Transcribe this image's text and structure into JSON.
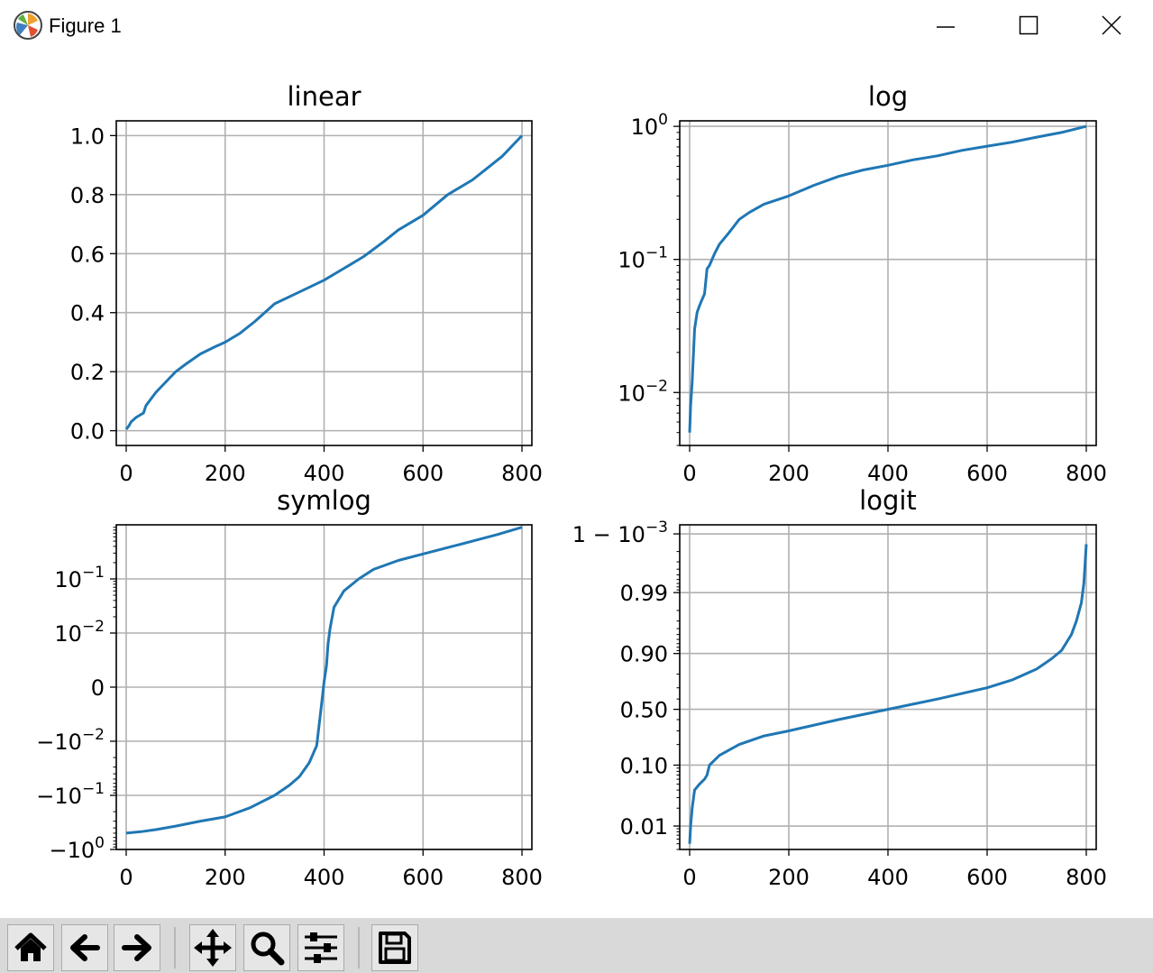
{
  "window": {
    "title": "Figure 1",
    "controls": [
      "minimize",
      "maximize",
      "close"
    ]
  },
  "toolbar": {
    "buttons": [
      "home-icon",
      "back-arrow-icon",
      "forward-arrow-icon",
      "pan-icon",
      "zoom-icon",
      "configure-subplots-icon",
      "save-icon"
    ]
  },
  "colors": {
    "line": "#1f77b4",
    "grid": "#b0b0b0",
    "toolbar_bg": "#d9d9d9"
  },
  "chart_data": [
    {
      "type": "line",
      "title": "linear",
      "yscale": "linear",
      "grid": true,
      "xlim": [
        -20,
        820
      ],
      "ylim": [
        -0.05,
        1.05
      ],
      "xticks": [
        0,
        200,
        400,
        600,
        800
      ],
      "yticks": [
        {
          "v": 0.0,
          "label": "0.0"
        },
        {
          "v": 0.2,
          "label": "0.2"
        },
        {
          "v": 0.4,
          "label": "0.4"
        },
        {
          "v": 0.6,
          "label": "0.6"
        },
        {
          "v": 0.8,
          "label": "0.8"
        },
        {
          "v": 1.0,
          "label": "1.0"
        }
      ],
      "x": [
        0,
        5,
        10,
        20,
        30,
        35,
        40,
        60,
        80,
        100,
        120,
        150,
        180,
        200,
        230,
        260,
        300,
        350,
        400,
        450,
        480,
        520,
        550,
        600,
        650,
        700,
        730,
        760,
        800
      ],
      "y": [
        0.005,
        0.015,
        0.03,
        0.045,
        0.055,
        0.06,
        0.085,
        0.13,
        0.165,
        0.2,
        0.225,
        0.26,
        0.285,
        0.3,
        0.33,
        0.37,
        0.43,
        0.47,
        0.51,
        0.56,
        0.59,
        0.64,
        0.68,
        0.73,
        0.8,
        0.85,
        0.89,
        0.93,
        1.0
      ]
    },
    {
      "type": "line",
      "title": "log",
      "yscale": "log",
      "grid": true,
      "xlim": [
        -20,
        820
      ],
      "ylim": [
        0.004,
        1.1
      ],
      "xticks": [
        0,
        200,
        400,
        600,
        800
      ],
      "yticks": [
        {
          "v": 1.0,
          "base": "10",
          "exp": "0"
        },
        {
          "v": 0.1,
          "base": "10",
          "exp": "−1"
        },
        {
          "v": 0.01,
          "base": "10",
          "exp": "−2"
        }
      ],
      "x": [
        0,
        2,
        5,
        10,
        15,
        20,
        25,
        30,
        35,
        40,
        50,
        60,
        80,
        100,
        120,
        150,
        200,
        250,
        300,
        350,
        400,
        450,
        500,
        550,
        600,
        650,
        700,
        750,
        800
      ],
      "y": [
        0.005,
        0.008,
        0.012,
        0.03,
        0.04,
        0.045,
        0.05,
        0.055,
        0.085,
        0.09,
        0.11,
        0.13,
        0.16,
        0.2,
        0.225,
        0.26,
        0.3,
        0.36,
        0.42,
        0.47,
        0.51,
        0.56,
        0.6,
        0.66,
        0.71,
        0.76,
        0.83,
        0.9,
        1.0
      ]
    },
    {
      "type": "line",
      "title": "symlog",
      "yscale": "symlog",
      "linthresh": 0.01,
      "grid": true,
      "xlim": [
        -20,
        820
      ],
      "ylim": [
        -1.0,
        1.0
      ],
      "xticks": [
        0,
        200,
        400,
        600,
        800
      ],
      "yticks": [
        {
          "v": 0.1,
          "base": "10",
          "exp": "−1"
        },
        {
          "v": 0.01,
          "base": "10",
          "exp": "−2"
        },
        {
          "v": 0,
          "text": "0"
        },
        {
          "v": -0.01,
          "base": "−10",
          "exp": "−2"
        },
        {
          "v": -0.1,
          "base": "−10",
          "exp": "−1"
        },
        {
          "v": -1.0,
          "base": "−10",
          "exp": "0"
        }
      ],
      "x": [
        0,
        30,
        60,
        100,
        150,
        200,
        250,
        300,
        330,
        350,
        370,
        385,
        390,
        395,
        400,
        405,
        408,
        412,
        420,
        440,
        470,
        500,
        550,
        600,
        650,
        700,
        750,
        800
      ],
      "y": [
        -0.5,
        -0.47,
        -0.43,
        -0.37,
        -0.3,
        -0.25,
        -0.17,
        -0.1,
        -0.065,
        -0.045,
        -0.025,
        -0.012,
        -0.007,
        -0.003,
        0.001,
        0.004,
        0.008,
        0.012,
        0.03,
        0.06,
        0.1,
        0.15,
        0.22,
        0.29,
        0.38,
        0.5,
        0.66,
        0.9
      ]
    },
    {
      "type": "line",
      "title": "logit",
      "yscale": "logit",
      "grid": true,
      "xlim": [
        -20,
        820
      ],
      "ylim": [
        0.004,
        0.9993
      ],
      "xticks": [
        0,
        200,
        400,
        600,
        800
      ],
      "yticks": [
        {
          "v": 0.999,
          "base": "1 − 10",
          "exp": "−3"
        },
        {
          "v": 0.99,
          "text": "0.99"
        },
        {
          "v": 0.9,
          "text": "0.90"
        },
        {
          "v": 0.5,
          "text": "0.50"
        },
        {
          "v": 0.1,
          "text": "0.10"
        },
        {
          "v": 0.01,
          "text": "0.01"
        }
      ],
      "x": [
        0,
        2,
        5,
        10,
        20,
        30,
        35,
        40,
        60,
        100,
        150,
        200,
        300,
        400,
        500,
        600,
        650,
        700,
        730,
        750,
        770,
        780,
        790,
        795,
        800
      ],
      "y": [
        0.005,
        0.01,
        0.02,
        0.04,
        0.05,
        0.06,
        0.07,
        0.1,
        0.14,
        0.2,
        0.26,
        0.3,
        0.4,
        0.5,
        0.6,
        0.7,
        0.76,
        0.83,
        0.88,
        0.91,
        0.95,
        0.97,
        0.985,
        0.993,
        0.9985
      ]
    }
  ]
}
